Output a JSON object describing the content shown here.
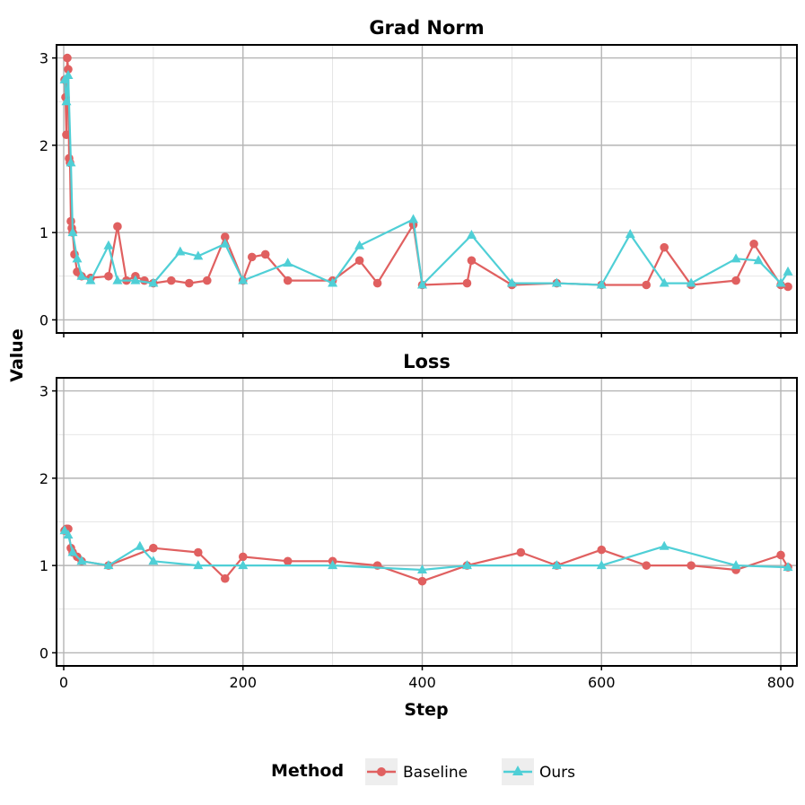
{
  "chart_data": [
    {
      "type": "line",
      "title": "Grad Norm",
      "xlabel": "Step",
      "ylabel": "Value",
      "xlim": [
        -8,
        818
      ],
      "ylim": [
        -0.15,
        3.15
      ],
      "xticks": [
        0,
        200,
        400,
        600,
        800
      ],
      "yticks": [
        0,
        1,
        2,
        3
      ],
      "grid": true,
      "legend_position": "bottom",
      "legend_title": "Method",
      "series": [
        {
          "name": "Baseline",
          "color": "#e06060",
          "marker": "circle",
          "x": [
            1,
            2,
            3,
            4,
            5,
            6,
            7,
            8,
            9,
            10,
            12,
            15,
            20,
            30,
            50,
            60,
            70,
            80,
            90,
            100,
            120,
            140,
            160,
            180,
            200,
            210,
            225,
            250,
            300,
            330,
            350,
            390,
            400,
            450,
            455,
            500,
            550,
            600,
            650,
            670,
            700,
            750,
            770,
            800,
            808
          ],
          "y": [
            2.75,
            2.55,
            2.12,
            3.0,
            2.87,
            1.85,
            1.8,
            1.13,
            1.05,
            1.0,
            0.75,
            0.55,
            0.5,
            0.48,
            0.5,
            1.07,
            0.45,
            0.5,
            0.45,
            0.42,
            0.45,
            0.42,
            0.45,
            0.95,
            0.45,
            0.72,
            0.75,
            0.45,
            0.45,
            0.68,
            0.42,
            1.09,
            0.4,
            0.42,
            0.68,
            0.4,
            0.42,
            0.4,
            0.4,
            0.83,
            0.4,
            0.45,
            0.87,
            0.4,
            0.38
          ]
        },
        {
          "name": "Ours",
          "color": "#4fcfd6",
          "marker": "triangle",
          "x": [
            1,
            3,
            5,
            8,
            10,
            15,
            20,
            30,
            50,
            60,
            80,
            100,
            130,
            150,
            180,
            200,
            250,
            300,
            330,
            390,
            400,
            455,
            500,
            550,
            600,
            632,
            670,
            700,
            750,
            775,
            800,
            808
          ],
          "y": [
            2.75,
            2.5,
            2.8,
            1.8,
            1.0,
            0.7,
            0.5,
            0.45,
            0.85,
            0.45,
            0.45,
            0.42,
            0.78,
            0.73,
            0.87,
            0.45,
            0.65,
            0.42,
            0.85,
            1.15,
            0.4,
            0.97,
            0.42,
            0.42,
            0.4,
            0.98,
            0.42,
            0.42,
            0.7,
            0.68,
            0.42,
            0.55
          ]
        }
      ]
    },
    {
      "type": "line",
      "title": "Loss",
      "xlabel": "Step",
      "ylabel": "Value",
      "xlim": [
        -8,
        818
      ],
      "ylim": [
        -0.15,
        3.15
      ],
      "xticks": [
        0,
        200,
        400,
        600,
        800
      ],
      "yticks": [
        0,
        1,
        2,
        3
      ],
      "grid": true,
      "legend_position": "bottom",
      "legend_title": "Method",
      "series": [
        {
          "name": "Baseline",
          "color": "#e06060",
          "marker": "circle",
          "x": [
            1,
            3,
            5,
            8,
            10,
            15,
            20,
            50,
            100,
            150,
            180,
            200,
            250,
            300,
            350,
            400,
            450,
            510,
            550,
            600,
            650,
            700,
            750,
            800,
            808
          ],
          "y": [
            1.4,
            1.42,
            1.42,
            1.2,
            1.15,
            1.1,
            1.05,
            1.0,
            1.2,
            1.15,
            0.85,
            1.1,
            1.05,
            1.05,
            1.0,
            0.82,
            1.0,
            1.15,
            1.0,
            1.18,
            1.0,
            1.0,
            0.95,
            1.12,
            0.98
          ]
        },
        {
          "name": "Ours",
          "color": "#4fcfd6",
          "marker": "triangle",
          "x": [
            1,
            5,
            10,
            20,
            50,
            85,
            100,
            150,
            200,
            300,
            400,
            450,
            550,
            600,
            670,
            750,
            808
          ],
          "y": [
            1.4,
            1.35,
            1.15,
            1.05,
            1.0,
            1.22,
            1.05,
            1.0,
            1.0,
            1.0,
            0.95,
            1.0,
            1.0,
            1.0,
            1.22,
            1.0,
            0.98
          ]
        }
      ]
    }
  ],
  "legend": {
    "title": "Method",
    "items": [
      "Baseline",
      "Ours"
    ]
  }
}
